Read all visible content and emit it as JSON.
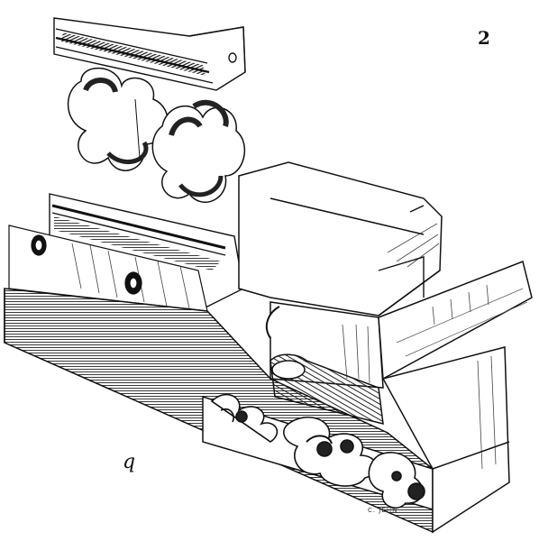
{
  "figure": {
    "number_label": "2",
    "letter_label": "q",
    "engraver_signature": "C. JEHN"
  }
}
